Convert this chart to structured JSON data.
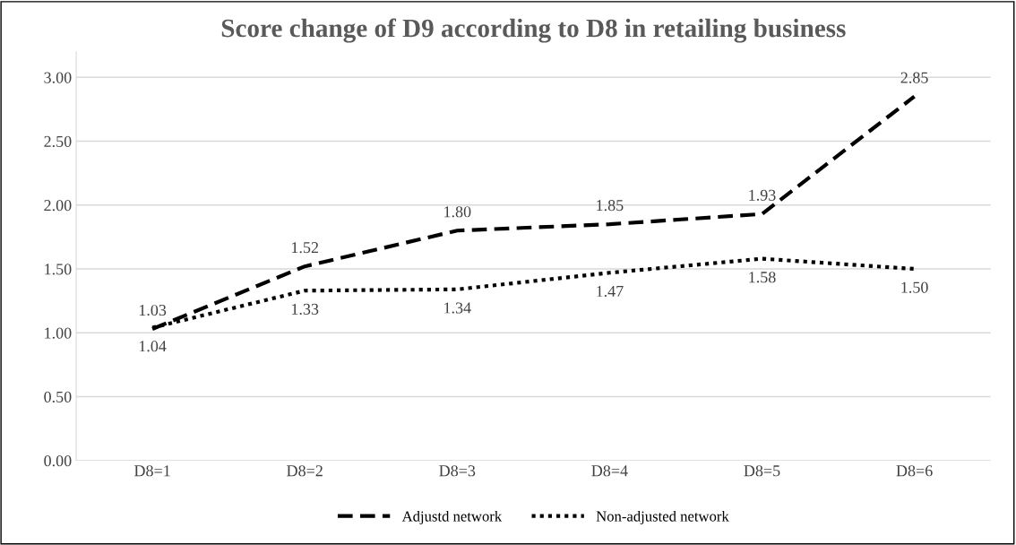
{
  "chart_data": {
    "type": "line",
    "title": "Score change of D9 according to D8 in retailing business",
    "categories": [
      "D8=1",
      "D8=2",
      "D8=3",
      "D8=4",
      "D8=5",
      "D8=6"
    ],
    "series": [
      {
        "name": "Adjustd network",
        "color": "#000000",
        "line_style": "dashed",
        "values": [
          1.03,
          1.52,
          1.8,
          1.85,
          1.93,
          2.85
        ],
        "value_labels": [
          "1.03",
          "1.52",
          "1.80",
          "1.85",
          "1.93",
          "2.85"
        ]
      },
      {
        "name": "Non-adjusted network",
        "color": "#000000",
        "line_style": "dotted",
        "values": [
          1.04,
          1.33,
          1.34,
          1.47,
          1.58,
          1.5
        ],
        "value_labels": [
          "1.04",
          "1.33",
          "1.34",
          "1.47",
          "1.58",
          "1.50"
        ]
      }
    ],
    "ylim": [
      0,
      3.2
    ],
    "yticks": [
      {
        "value": 0,
        "label": "0.00"
      },
      {
        "value": 0.5,
        "label": "0.50"
      },
      {
        "value": 1,
        "label": "1.00"
      },
      {
        "value": 1.5,
        "label": "1.50"
      },
      {
        "value": 2,
        "label": "2.00"
      },
      {
        "value": 2.5,
        "label": "2.50"
      },
      {
        "value": 3,
        "label": "3.00"
      }
    ],
    "grid": "y",
    "legend": "bottom",
    "marker": "none"
  }
}
